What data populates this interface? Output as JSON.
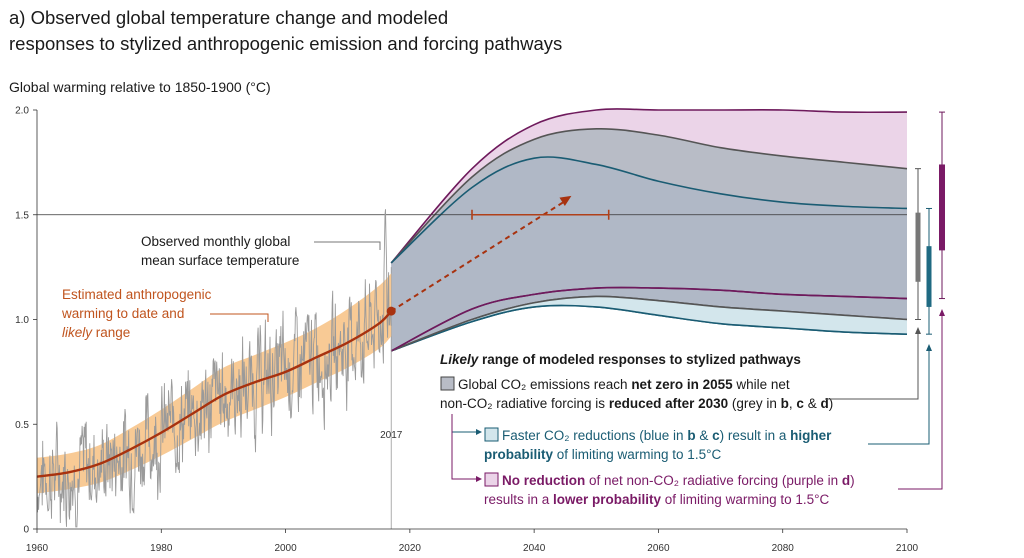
{
  "title": {
    "line1": "a) Observed global temperature change and modeled",
    "line2": "responses to stylized anthropogenic emission and forcing pathways"
  },
  "chart_data": {
    "type": "line",
    "title": "a) Observed global temperature change and modeled responses to stylized anthropogenic emission and forcing pathways",
    "ylabel": "Global warming relative to 1850-1900 (°C)",
    "xlabel": "",
    "xlim": [
      1960,
      2100
    ],
    "ylim": [
      0,
      2.0
    ],
    "x_ticks": [
      "1960",
      "1980",
      "2000",
      "2020",
      "2040",
      "2060",
      "2080",
      "2100"
    ],
    "y_ticks": [
      "0",
      "0.5",
      "1.0",
      "1.5",
      "2.0"
    ],
    "reference_line": 1.5,
    "marker_year_label": "2017",
    "anthropogenic_estimate": {
      "x": [
        1960,
        1965,
        1970,
        1975,
        1980,
        1985,
        1990,
        1995,
        2000,
        2005,
        2010,
        2015,
        2017
      ],
      "y": [
        0.25,
        0.27,
        0.31,
        0.38,
        0.46,
        0.55,
        0.64,
        0.7,
        0.75,
        0.82,
        0.89,
        0.98,
        1.04
      ],
      "likely_low": [
        0.17,
        0.19,
        0.22,
        0.28,
        0.35,
        0.43,
        0.51,
        0.57,
        0.63,
        0.7,
        0.77,
        0.86,
        0.92
      ],
      "likely_high": [
        0.34,
        0.36,
        0.4,
        0.48,
        0.57,
        0.67,
        0.77,
        0.83,
        0.89,
        0.96,
        1.05,
        1.16,
        1.22
      ]
    },
    "observed_monthly": {
      "x_range": [
        1960,
        2017
      ],
      "peak": 1.58,
      "peak_year": 2016
    },
    "projection_ranges": [
      {
        "name": "grey",
        "label": "net zero in 2055, non-CO2 reduced after 2030",
        "x": [
          2017,
          2030,
          2040,
          2050,
          2060,
          2070,
          2080,
          2090,
          2100
        ],
        "upper": [
          1.27,
          1.68,
          1.86,
          1.91,
          1.88,
          1.82,
          1.78,
          1.75,
          1.72
        ],
        "lower": [
          0.85,
          1.0,
          1.08,
          1.11,
          1.09,
          1.06,
          1.04,
          1.02,
          1.0
        ]
      },
      {
        "name": "blue",
        "label": "faster CO2 reductions",
        "x": [
          2017,
          2030,
          2040,
          2050,
          2060,
          2070,
          2080,
          2090,
          2100
        ],
        "upper": [
          1.27,
          1.63,
          1.77,
          1.74,
          1.66,
          1.6,
          1.56,
          1.54,
          1.53
        ],
        "lower": [
          0.85,
          0.99,
          1.06,
          1.06,
          1.02,
          0.98,
          0.96,
          0.94,
          0.93
        ]
      },
      {
        "name": "purple",
        "label": "no reduction of net non-CO2 forcing",
        "x": [
          2017,
          2030,
          2040,
          2050,
          2060,
          2070,
          2080,
          2090,
          2100
        ],
        "upper": [
          1.27,
          1.72,
          1.93,
          2.0,
          2.0,
          2.0,
          2.0,
          1.99,
          1.99
        ],
        "lower": [
          0.85,
          1.05,
          1.12,
          1.15,
          1.15,
          1.14,
          1.12,
          1.11,
          1.1
        ]
      }
    ],
    "extrapolation_arrow": {
      "x": [
        2017,
        2046
      ],
      "y": [
        1.04,
        1.59
      ]
    },
    "crossing_range": {
      "y": 1.5,
      "x": [
        2030,
        2052
      ]
    },
    "box_whiskers_2100": [
      {
        "name": "grey",
        "whisker": [
          1.0,
          1.72
        ],
        "box": [
          1.18,
          1.51
        ]
      },
      {
        "name": "blue",
        "whisker": [
          0.93,
          1.53
        ],
        "box": [
          1.06,
          1.35
        ]
      },
      {
        "name": "purple",
        "whisker": [
          1.1,
          1.99
        ],
        "box": [
          1.33,
          1.74
        ]
      }
    ]
  },
  "annotations": {
    "observed_l1": "Observed monthly global",
    "observed_l2": "mean surface temperature",
    "anthro_l1": "Estimated anthropogenic",
    "anthro_l2": "warming to date and",
    "anthro_l3_italic": "likely",
    "anthro_l3_rest": " range"
  },
  "legend": {
    "heading_italic": "Likely",
    "heading_rest": " range of modeled responses to stylized pathways",
    "grey_l1_a": "Global CO₂ emissions reach ",
    "grey_l1_b": "net zero in 2055",
    "grey_l1_c": " while net",
    "grey_l2_a": "non-CO₂ radiative forcing is ",
    "grey_l2_b": "reduced after 2030",
    "grey_l2_c": " (grey in ",
    "grey_l2_d": "b",
    "grey_l2_e": ", ",
    "grey_l2_f": "c",
    "grey_l2_g": " & ",
    "grey_l2_h": "d",
    "grey_l2_i": ")",
    "blue_l1_a": "Faster CO₂ reductions (blue in ",
    "blue_l1_b": "b",
    "blue_l1_c": " & ",
    "blue_l1_d": "c",
    "blue_l1_e": ") result in a ",
    "blue_l1_f": "higher",
    "blue_l2_a": "probability",
    "blue_l2_b": " of limiting warming to 1.5°C",
    "purple_l1_a": "No reduction",
    "purple_l1_b": " of net non-CO₂ radiative forcing (purple in ",
    "purple_l1_c": "d",
    "purple_l1_d": ")",
    "purple_l2_a": "results in a ",
    "purple_l2_b": "lower probability",
    "purple_l2_c": " of limiting warming to 1.5°C"
  },
  "colors": {
    "orange_band": "#f7c48a",
    "estimate_line": "#a8320f",
    "observed": "#9a9a9a",
    "grey_fill": "#b8bcc6",
    "blue_fill": "#d3e6ec",
    "purple_fill": "#ebd4e8",
    "grey_line": "#555555",
    "blue_line": "#1a5c73",
    "purple_line": "#6e1a5c"
  }
}
